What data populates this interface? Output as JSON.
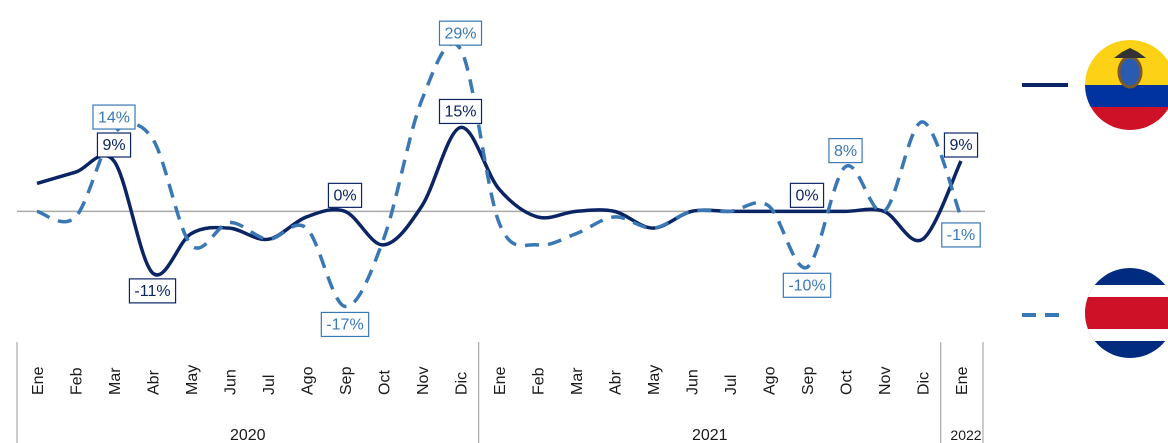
{
  "chart_data": {
    "type": "line",
    "categories": [
      "Ene",
      "Feb",
      "Mar",
      "Abr",
      "May",
      "Jun",
      "Jul",
      "Ago",
      "Sep",
      "Oct",
      "Nov",
      "Dic",
      "Ene",
      "Feb",
      "Mar",
      "Abr",
      "May",
      "Jun",
      "Jul",
      "Ago",
      "Sep",
      "Oct",
      "Nov",
      "Dic",
      "Ene"
    ],
    "groups": [
      {
        "label": "2020",
        "span": 12
      },
      {
        "label": "2021",
        "span": 12
      },
      {
        "label": "2022",
        "span": 1
      }
    ],
    "ylim": [
      -23,
      36
    ],
    "series": [
      {
        "color": "#0b2463",
        "dash": "solid",
        "values": [
          5,
          7,
          9,
          -11,
          -4,
          -3,
          -5,
          -1,
          0,
          -6,
          1,
          15,
          4,
          -1,
          0,
          0,
          -3,
          0,
          0,
          0,
          0,
          0,
          0,
          -5,
          9
        ],
        "value_labels": [
          null,
          null,
          "9%",
          "-11%",
          null,
          null,
          null,
          null,
          "0%",
          null,
          null,
          "15%",
          null,
          null,
          null,
          null,
          null,
          null,
          null,
          null,
          "0%",
          null,
          null,
          null,
          "9%"
        ]
      },
      {
        "color": "#3a78b5",
        "dash": "dashed",
        "values": [
          0,
          -1,
          14,
          13,
          -6,
          -2,
          -5,
          -3,
          -17,
          -5,
          20,
          29,
          -2,
          -6,
          -4,
          -1,
          -3,
          0,
          0,
          1,
          -10,
          8,
          0,
          16,
          -1
        ],
        "value_labels": [
          null,
          null,
          "14%",
          null,
          null,
          null,
          null,
          null,
          "-17%",
          null,
          null,
          "29%",
          null,
          null,
          null,
          null,
          null,
          null,
          null,
          null,
          "-10%",
          "8%",
          null,
          null,
          "-1%"
        ]
      }
    ]
  }
}
